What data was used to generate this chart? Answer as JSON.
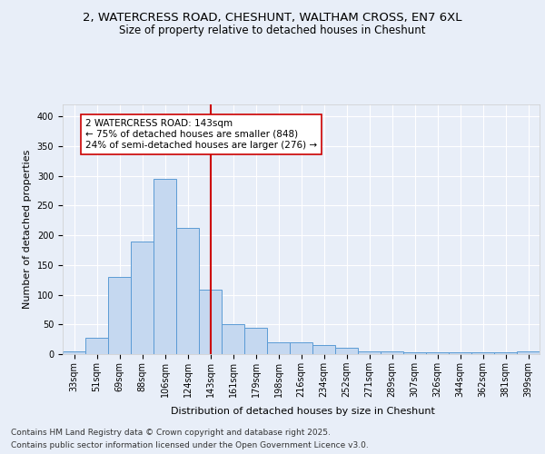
{
  "title_line1": "2, WATERCRESS ROAD, CHESHUNT, WALTHAM CROSS, EN7 6XL",
  "title_line2": "Size of property relative to detached houses in Cheshunt",
  "xlabel": "Distribution of detached houses by size in Cheshunt",
  "ylabel": "Number of detached properties",
  "categories": [
    "33sqm",
    "51sqm",
    "69sqm",
    "88sqm",
    "106sqm",
    "124sqm",
    "143sqm",
    "161sqm",
    "179sqm",
    "198sqm",
    "216sqm",
    "234sqm",
    "252sqm",
    "271sqm",
    "289sqm",
    "307sqm",
    "326sqm",
    "344sqm",
    "362sqm",
    "381sqm",
    "399sqm"
  ],
  "bar_values": [
    4,
    28,
    130,
    190,
    295,
    212,
    109,
    50,
    45,
    20,
    20,
    15,
    10,
    4,
    4,
    3,
    3,
    3,
    3,
    3,
    4
  ],
  "bar_color": "#c5d8f0",
  "bar_edge_color": "#5b9bd5",
  "vline_x_index": 6,
  "vline_color": "#cc0000",
  "annotation_text": "2 WATERCRESS ROAD: 143sqm\n← 75% of detached houses are smaller (848)\n24% of semi-detached houses are larger (276) →",
  "annotation_box_color": "#ffffff",
  "annotation_box_edge": "#cc0000",
  "ylim": [
    0,
    420
  ],
  "yticks": [
    0,
    50,
    100,
    150,
    200,
    250,
    300,
    350,
    400
  ],
  "bg_color": "#e8eef8",
  "plot_bg_color": "#e8eef8",
  "footer_line1": "Contains HM Land Registry data © Crown copyright and database right 2025.",
  "footer_line2": "Contains public sector information licensed under the Open Government Licence v3.0.",
  "title_fontsize": 9.5,
  "subtitle_fontsize": 8.5,
  "axis_label_fontsize": 8,
  "tick_fontsize": 7,
  "annotation_fontsize": 7.5,
  "footer_fontsize": 6.5
}
